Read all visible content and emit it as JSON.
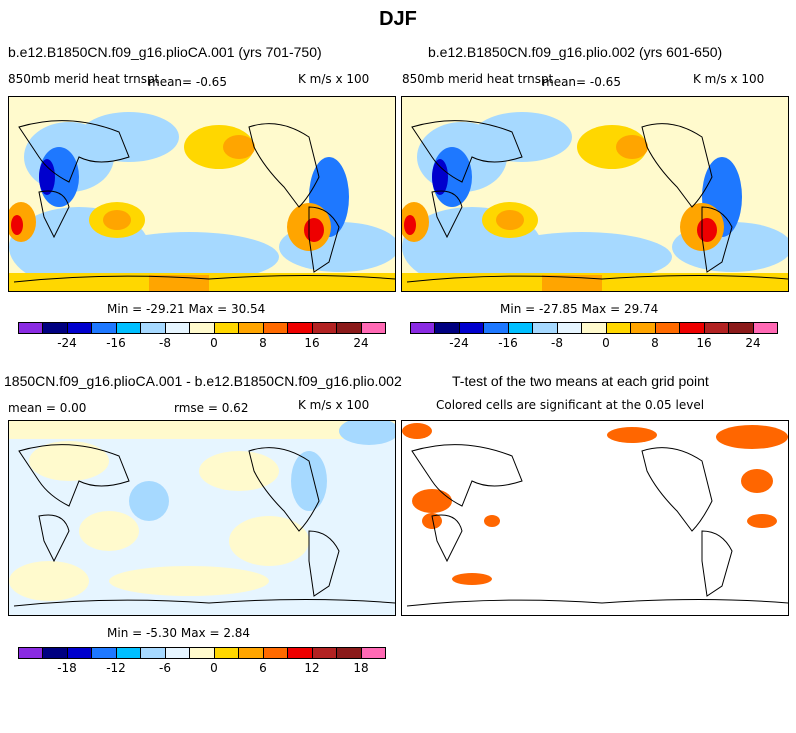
{
  "title": "DJF",
  "top_left": {
    "case": "b.e12.B1850CN.f09_g16.plioCA.001 (yrs 701-750)",
    "variable": "850mb merid heat trnspt",
    "mean": "mean=   -0.65",
    "units": "K m/s x 100",
    "minmax": "Min = -29.21 Max =  30.54"
  },
  "top_right": {
    "case": "b.e12.B1850CN.f09_g16.plio.002 (yrs 601-650)",
    "variable": "850mb merid heat trnspt",
    "mean": "mean=   -0.65",
    "units": "K m/s x 100",
    "minmax": "Min = -27.85 Max =  29.74"
  },
  "bottom_left": {
    "case": "1850CN.f09_g16.plioCA.001 - b.e12.B1850CN.f09_g16.plio.002",
    "mean": "mean =   0.00",
    "rmse": "rmse =   0.62",
    "units": "K m/s x 100",
    "minmax": "Min = -5.30 Max =   2.84"
  },
  "bottom_right": {
    "title": "T-test of the two means at each grid point",
    "subtitle": "Colored cells are significant at the 0.05 level",
    "sig_color": "#ff6600"
  },
  "colorbar": {
    "colors": [
      "#8a2be2",
      "#000080",
      "#0000cd",
      "#1e78ff",
      "#00bfff",
      "#a6d9ff",
      "#e6f5ff",
      "#fffacd",
      "#ffd700",
      "#ffa500",
      "#ff6a00",
      "#ee0000",
      "#b22222",
      "#8b1a1a",
      "#ff69b4"
    ],
    "top_ticks": [
      "-24",
      "-16",
      "-8",
      "0",
      "8",
      "16",
      "24"
    ],
    "diff_ticks": [
      "-18",
      "-12",
      "-6",
      "0",
      "6",
      "12",
      "18"
    ]
  }
}
